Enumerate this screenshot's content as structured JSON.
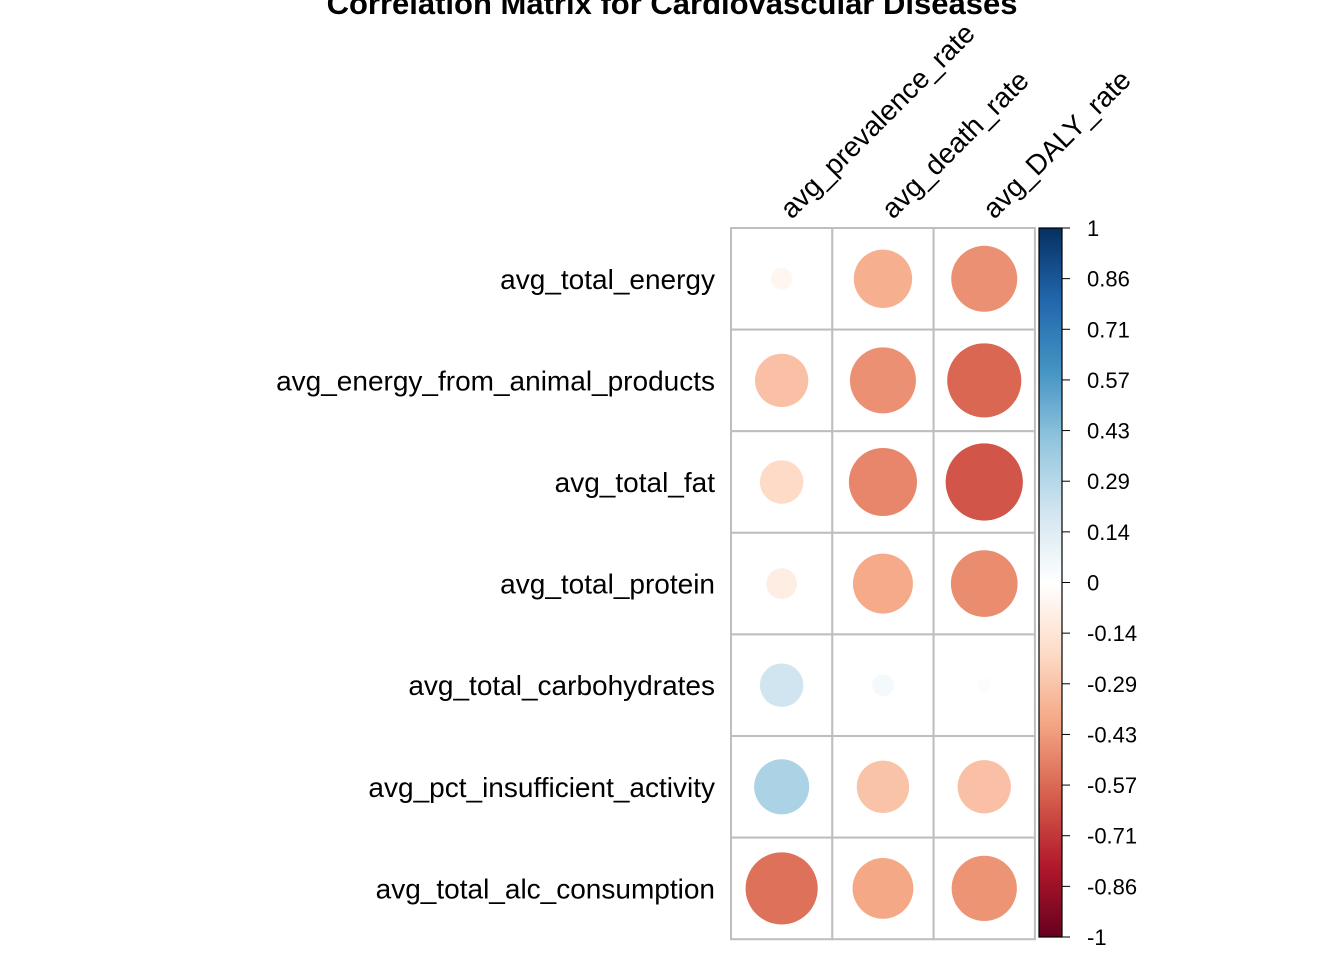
{
  "chart_data": {
    "type": "heatmap",
    "title": "Correlation Matrix for Cardiovascular Diseases",
    "columns": [
      "avg_prevalence_rate",
      "avg_death_rate",
      "avg_DALY_rate"
    ],
    "rows": [
      "avg_total_energy",
      "avg_energy_from_animal_products",
      "avg_total_fat",
      "avg_total_protein",
      "avg_total_carbohydrates",
      "avg_pct_insufficient_activity",
      "avg_total_alc_consumption"
    ],
    "values": [
      [
        -0.05,
        -0.36,
        -0.46
      ],
      [
        -0.3,
        -0.46,
        -0.58
      ],
      [
        -0.2,
        -0.49,
        -0.63
      ],
      [
        -0.1,
        -0.38,
        -0.47
      ],
      [
        0.2,
        0.05,
        0.02
      ],
      [
        0.32,
        -0.29,
        -0.3
      ],
      [
        -0.55,
        -0.39,
        -0.45
      ]
    ],
    "colorbar": {
      "ticks": [
        "1",
        "0.86",
        "0.71",
        "0.57",
        "0.43",
        "0.29",
        "0.14",
        "0",
        "-0.14",
        "-0.29",
        "-0.43",
        "-0.57",
        "-0.71",
        "-0.86",
        "-1"
      ],
      "range": [
        -1,
        1
      ],
      "colors": [
        "#67001F",
        "#B2182B",
        "#D6604D",
        "#F4A582",
        "#FDDBC7",
        "#FFFFFF",
        "#D1E5F0",
        "#92C5DE",
        "#4393C3",
        "#2166AC",
        "#053061"
      ]
    },
    "glyph": "circle",
    "grid": true,
    "legend": "right"
  }
}
